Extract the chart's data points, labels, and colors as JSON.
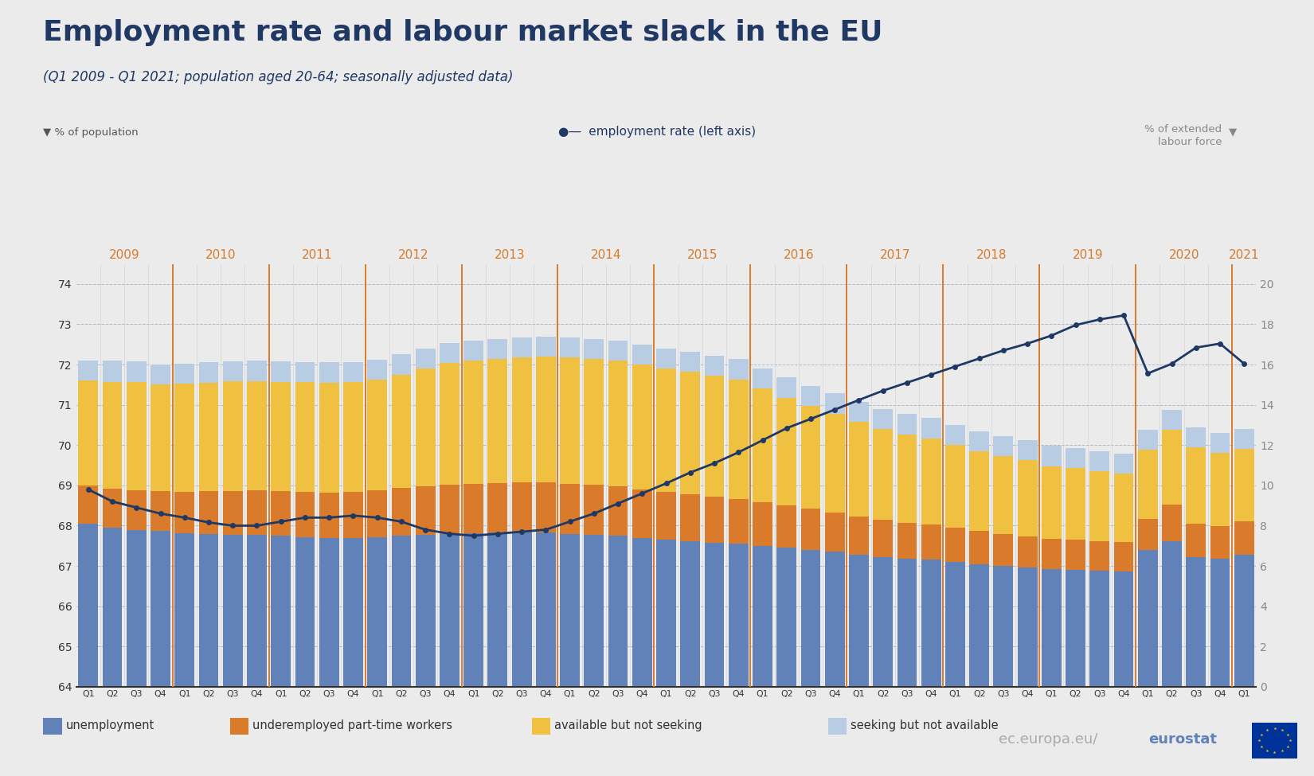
{
  "title": "Employment rate and labour market slack in the EU",
  "subtitle": "(Q1 2009 - Q1 2021; population aged 20-64; seasonally adjusted data)",
  "title_color": "#1f3864",
  "background_color": "#ebebeb",
  "left_axis_label": "% of population",
  "right_axis_label": "% of extended\nlabour force",
  "legend_items": [
    "unemployment",
    "underemployed part-time workers",
    "available but not seeking",
    "seeking but not available"
  ],
  "legend_colors": [
    "#6182b8",
    "#d97b2a",
    "#f0c040",
    "#b8cce4"
  ],
  "line_label": "employment rate (left axis)",
  "line_color": "#1f3864",
  "ylim_left": [
    64,
    74.5
  ],
  "ylim_right": [
    0,
    21.0
  ],
  "year_labels": [
    "2009",
    "2010",
    "2011",
    "2012",
    "2013",
    "2014",
    "2015",
    "2016",
    "2017",
    "2018",
    "2019",
    "2020",
    "2021"
  ],
  "year_start_indices": [
    0,
    4,
    8,
    12,
    16,
    20,
    24,
    28,
    32,
    36,
    40,
    44,
    48
  ],
  "unemployment": [
    4.05,
    3.95,
    3.9,
    3.88,
    3.82,
    3.8,
    3.78,
    3.77,
    3.75,
    3.72,
    3.7,
    3.7,
    3.72,
    3.75,
    3.78,
    3.8,
    3.82,
    3.83,
    3.83,
    3.83,
    3.8,
    3.78,
    3.75,
    3.7,
    3.65,
    3.62,
    3.58,
    3.55,
    3.5,
    3.45,
    3.4,
    3.35,
    3.28,
    3.22,
    3.18,
    3.15,
    3.1,
    3.05,
    3.0,
    2.96,
    2.92,
    2.9,
    2.88,
    2.86,
    3.4,
    3.62,
    3.22,
    3.18,
    3.28
  ],
  "underemployed": [
    0.95,
    0.97,
    0.98,
    0.98,
    1.02,
    1.05,
    1.08,
    1.1,
    1.1,
    1.12,
    1.12,
    1.13,
    1.15,
    1.18,
    1.2,
    1.22,
    1.22,
    1.23,
    1.24,
    1.25,
    1.24,
    1.23,
    1.22,
    1.2,
    1.18,
    1.16,
    1.14,
    1.12,
    1.08,
    1.05,
    1.02,
    0.98,
    0.95,
    0.92,
    0.89,
    0.87,
    0.84,
    0.82,
    0.8,
    0.78,
    0.76,
    0.75,
    0.74,
    0.73,
    0.76,
    0.9,
    0.82,
    0.8,
    0.82
  ],
  "available_not_seeking": [
    2.6,
    2.65,
    2.68,
    2.65,
    2.68,
    2.7,
    2.72,
    2.72,
    2.72,
    2.72,
    2.73,
    2.73,
    2.75,
    2.82,
    2.92,
    3.02,
    3.05,
    3.08,
    3.1,
    3.12,
    3.13,
    3.13,
    3.12,
    3.1,
    3.07,
    3.04,
    3.0,
    2.96,
    2.82,
    2.68,
    2.55,
    2.45,
    2.35,
    2.25,
    2.2,
    2.15,
    2.06,
    1.98,
    1.92,
    1.88,
    1.8,
    1.78,
    1.73,
    1.7,
    1.72,
    1.86,
    1.9,
    1.83,
    1.8
  ],
  "seeking_not_available": [
    0.5,
    0.52,
    0.52,
    0.5,
    0.5,
    0.5,
    0.5,
    0.5,
    0.5,
    0.5,
    0.5,
    0.5,
    0.5,
    0.5,
    0.5,
    0.5,
    0.5,
    0.5,
    0.5,
    0.5,
    0.5,
    0.5,
    0.5,
    0.5,
    0.5,
    0.5,
    0.5,
    0.5,
    0.5,
    0.5,
    0.5,
    0.5,
    0.5,
    0.5,
    0.5,
    0.5,
    0.5,
    0.5,
    0.5,
    0.5,
    0.5,
    0.5,
    0.5,
    0.5,
    0.5,
    0.5,
    0.5,
    0.5,
    0.5
  ],
  "employment_rate": [
    68.9,
    68.6,
    68.45,
    68.3,
    68.2,
    68.08,
    68.0,
    68.0,
    68.1,
    68.2,
    68.2,
    68.25,
    68.2,
    68.1,
    67.9,
    67.8,
    67.75,
    67.8,
    67.85,
    67.9,
    68.1,
    68.3,
    68.55,
    68.8,
    69.05,
    69.32,
    69.55,
    69.82,
    70.12,
    70.42,
    70.65,
    70.88,
    71.12,
    71.35,
    71.55,
    71.75,
    71.95,
    72.15,
    72.35,
    72.52,
    72.72,
    72.98,
    73.12,
    73.22,
    71.78,
    72.02,
    72.42,
    72.52,
    72.02
  ]
}
